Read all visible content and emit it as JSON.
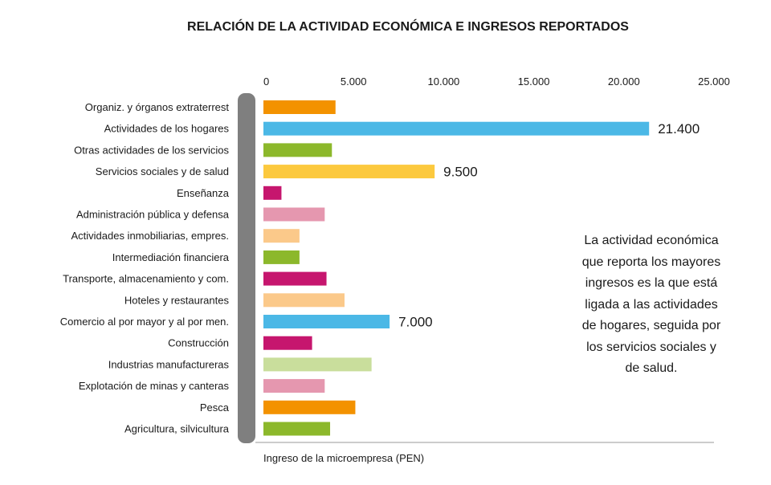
{
  "chart_data": {
    "type": "bar",
    "orientation": "horizontal",
    "title": "RELACIÓN DE LA ACTIVIDAD ECONÓMICA E INGRESOS REPORTADOS",
    "xlabel": "Ingreso de la microempresa (PEN)",
    "xlim": [
      0,
      25000
    ],
    "xticks": [
      "0",
      "5.000",
      "10.000",
      "15.000",
      "20.000",
      "25.000"
    ],
    "grid": false,
    "categories": [
      "Organiz. y órganos extraterrest",
      "Actividades de los hogares",
      "Otras actividades de los servicios",
      "Servicios sociales y de salud",
      "Enseñanza",
      "Administración pública y defensa",
      "Actividades inmobiliarias, empres.",
      "Intermediación financiera",
      "Transporte, almacenamiento y com.",
      "Hoteles y restaurantes",
      "Comercio al por mayor y al por men.",
      "Construcción",
      "Industrias manufactureras",
      "Explotación de minas y canteras",
      "Pesca",
      "Agricultura, silvicultura"
    ],
    "values": [
      4000,
      21400,
      3800,
      9500,
      1000,
      3400,
      2000,
      2000,
      3500,
      4500,
      7000,
      2700,
      6000,
      3400,
      5100,
      3700
    ],
    "colors": [
      "#F39200",
      "#4BB8E6",
      "#8CB82B",
      "#FCC93E",
      "#C6166E",
      "#E597AF",
      "#FBC98A",
      "#8CB82B",
      "#C6166E",
      "#FBC98A",
      "#4BB8E6",
      "#C6166E",
      "#C9DE9C",
      "#E597AF",
      "#F39200",
      "#8CB82B"
    ],
    "data_labels": [
      {
        "index": 1,
        "text": "21.400"
      },
      {
        "index": 3,
        "text": "9.500"
      },
      {
        "index": 10,
        "text": "7.000"
      }
    ],
    "annotation": "La actividad económica que reporta los mayores ingresos es la que está ligada a las actividades de hogares, seguida por los servicios sociales y de salud."
  }
}
